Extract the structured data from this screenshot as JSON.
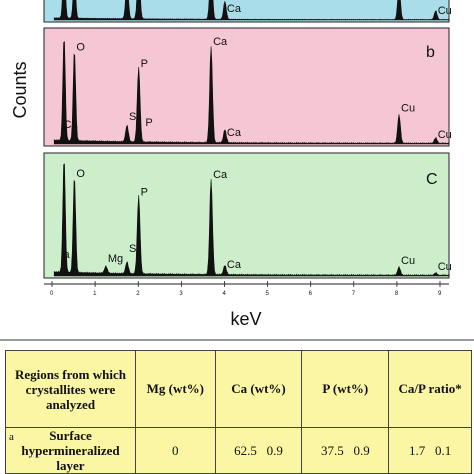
{
  "chart_data": {
    "type": "line",
    "title": "",
    "xlabel": "keV",
    "ylabel": "Counts",
    "xlim": [
      0,
      9.2
    ],
    "xticks": [
      "0",
      "1",
      "2",
      "3",
      "4",
      "5",
      "6",
      "7",
      "8",
      "9"
    ],
    "colors": {
      "panel_a": "#a9dde9",
      "panel_b": "#f5c6d4",
      "panel_c": "#cdeecb",
      "trace": "#111111"
    },
    "panels": [
      {
        "panel_label": "",
        "peaks": [
          {
            "keV": 0.28,
            "height": 0.95
          },
          {
            "keV": 0.52,
            "height": 0.7
          },
          {
            "keV": 1.74,
            "height": 0.6
          },
          {
            "keV": 2.01,
            "height": 0.85
          },
          {
            "keV": 3.69,
            "height": 0.9
          },
          {
            "keV": 4.01,
            "height": 0.3
          },
          {
            "keV": 8.05,
            "height": 0.55
          },
          {
            "keV": 8.9,
            "height": 0.15
          }
        ],
        "labels": [
          {
            "text": "Ca",
            "keV": 4.01
          },
          {
            "text": "Cu",
            "keV": 8.9
          }
        ]
      },
      {
        "panel_label": "b",
        "peaks": [
          {
            "keV": 0.28,
            "height": 0.95
          },
          {
            "keV": 0.52,
            "height": 0.83
          },
          {
            "keV": 1.74,
            "height": 0.15
          },
          {
            "keV": 2.01,
            "height": 0.68
          },
          {
            "keV": 3.69,
            "height": 0.88
          },
          {
            "keV": 4.01,
            "height": 0.12
          },
          {
            "keV": 8.05,
            "height": 0.26
          },
          {
            "keV": 8.9,
            "height": 0.05
          }
        ],
        "labels": [
          {
            "text": "O",
            "keV": 0.52
          },
          {
            "text": "P",
            "keV": 2.01
          },
          {
            "text": "Ca",
            "keV": 3.69
          },
          {
            "text": "Si",
            "keV": 1.74
          },
          {
            "text": "P",
            "keV": 2.12
          },
          {
            "text": "Ca",
            "keV": 0.22
          },
          {
            "text": "Ca",
            "keV": 4.01
          },
          {
            "text": "Cu",
            "keV": 8.05
          },
          {
            "text": "Cu",
            "keV": 8.9
          }
        ]
      },
      {
        "panel_label": "C",
        "peaks": [
          {
            "keV": 0.28,
            "height": 0.98
          },
          {
            "keV": 0.52,
            "height": 0.83
          },
          {
            "keV": 1.25,
            "height": 0.06
          },
          {
            "keV": 1.74,
            "height": 0.1
          },
          {
            "keV": 2.01,
            "height": 0.67
          },
          {
            "keV": 3.69,
            "height": 0.82
          },
          {
            "keV": 4.01,
            "height": 0.08
          },
          {
            "keV": 8.05,
            "height": 0.07
          },
          {
            "keV": 8.9,
            "height": 0.02
          }
        ],
        "labels": [
          {
            "text": "O",
            "keV": 0.52
          },
          {
            "text": "P",
            "keV": 2.01
          },
          {
            "text": "Ca",
            "keV": 3.69
          },
          {
            "text": "Mg",
            "keV": 1.25
          },
          {
            "text": "Si",
            "keV": 1.74
          },
          {
            "text": "a",
            "keV": 0.22
          },
          {
            "text": "Ca",
            "keV": 4.01
          },
          {
            "text": "Cu",
            "keV": 8.05
          },
          {
            "text": "Cu",
            "keV": 8.9
          }
        ]
      }
    ]
  },
  "table": {
    "headers": [
      "Regions from which crystallites were analyzed",
      "Mg (wt%)",
      "Ca (wt%)",
      "P (wt%)",
      "Ca/P ratio*"
    ],
    "rows": [
      {
        "letter": "a",
        "region": "Surface hypermineralized layer",
        "mg": "0",
        "ca": "62.5   0.9",
        "p": "37.5   0.9",
        "ratio": "1.7   0.1"
      }
    ]
  }
}
